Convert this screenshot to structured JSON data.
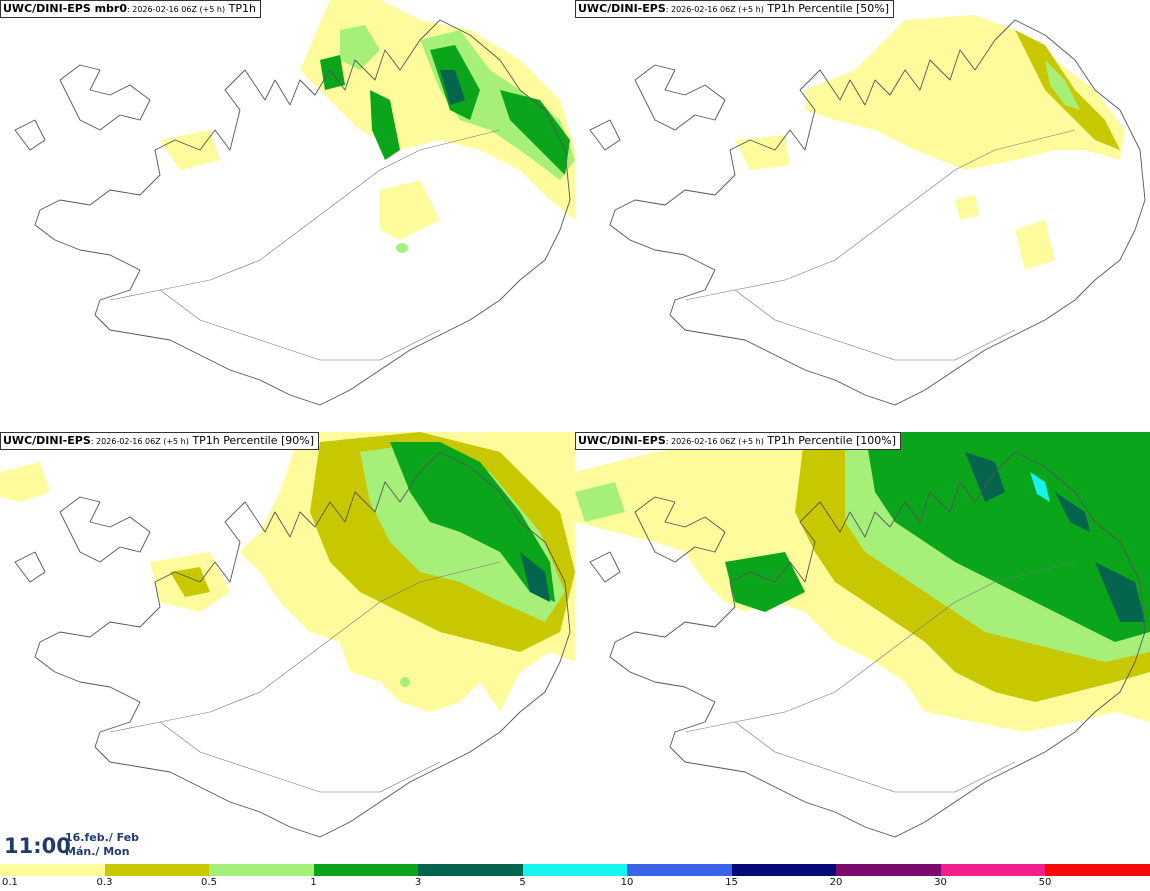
{
  "panels": [
    {
      "model": "UWC/DINI-EPS mbr0",
      "meta": ": 2026-02-16 06Z (+5 h)",
      "field": " TP1h"
    },
    {
      "model": "UWC/DINI-EPS",
      "meta": ": 2026-02-16 06Z (+5 h)",
      "field": " TP1h Percentile [50%]"
    },
    {
      "model": "UWC/DINI-EPS",
      "meta": ": 2026-02-16 06Z (+5 h)",
      "field": " TP1h Percentile [90%]"
    },
    {
      "model": "UWC/DINI-EPS",
      "meta": ": 2026-02-16 06Z (+5 h)",
      "field": " TP1h Percentile [100%]"
    }
  ],
  "valid_time": {
    "time": "11:00",
    "date": "16.feb./ Feb",
    "weekday": "Mán./ Mon"
  },
  "legend": {
    "ticks": [
      "0.1",
      "0.3",
      "0.5",
      "1",
      "3",
      "5",
      "10",
      "15",
      "20",
      "30",
      "50"
    ],
    "colors": [
      "#fdfb9c",
      "#c8c800",
      "#a6f07a",
      "#0aa51a",
      "#04644e",
      "#17f4ef",
      "#3a63e8",
      "#06087a",
      "#7a0a6e",
      "#f21e8c",
      "#f50a0a"
    ]
  },
  "colors": {
    "outline": "#555555",
    "roads": "#777777",
    "title_text": "#1f3a6b"
  }
}
